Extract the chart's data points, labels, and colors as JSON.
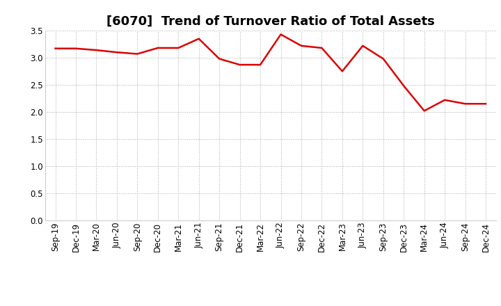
{
  "title": "[6070]  Trend of Turnover Ratio of Total Assets",
  "x_labels": [
    "Sep-19",
    "Dec-19",
    "Mar-20",
    "Jun-20",
    "Sep-20",
    "Dec-20",
    "Mar-21",
    "Jun-21",
    "Sep-21",
    "Dec-21",
    "Mar-22",
    "Jun-22",
    "Sep-22",
    "Dec-22",
    "Mar-23",
    "Jun-23",
    "Sep-23",
    "Dec-23",
    "Mar-24",
    "Jun-24",
    "Sep-24",
    "Dec-24"
  ],
  "y_values": [
    3.17,
    3.17,
    3.14,
    3.1,
    3.07,
    3.18,
    3.18,
    3.35,
    2.98,
    2.87,
    2.87,
    3.43,
    3.22,
    3.18,
    2.75,
    3.22,
    2.98,
    2.48,
    2.02,
    2.22,
    2.15,
    2.15
  ],
  "line_color": "#dd0000",
  "line_width": 1.8,
  "ylim": [
    0.0,
    3.5
  ],
  "yticks": [
    0.0,
    0.5,
    1.0,
    1.5,
    2.0,
    2.5,
    3.0,
    3.5
  ],
  "grid_color": "#aaaaaa",
  "background_color": "#ffffff",
  "title_fontsize": 13,
  "tick_fontsize": 8.5
}
